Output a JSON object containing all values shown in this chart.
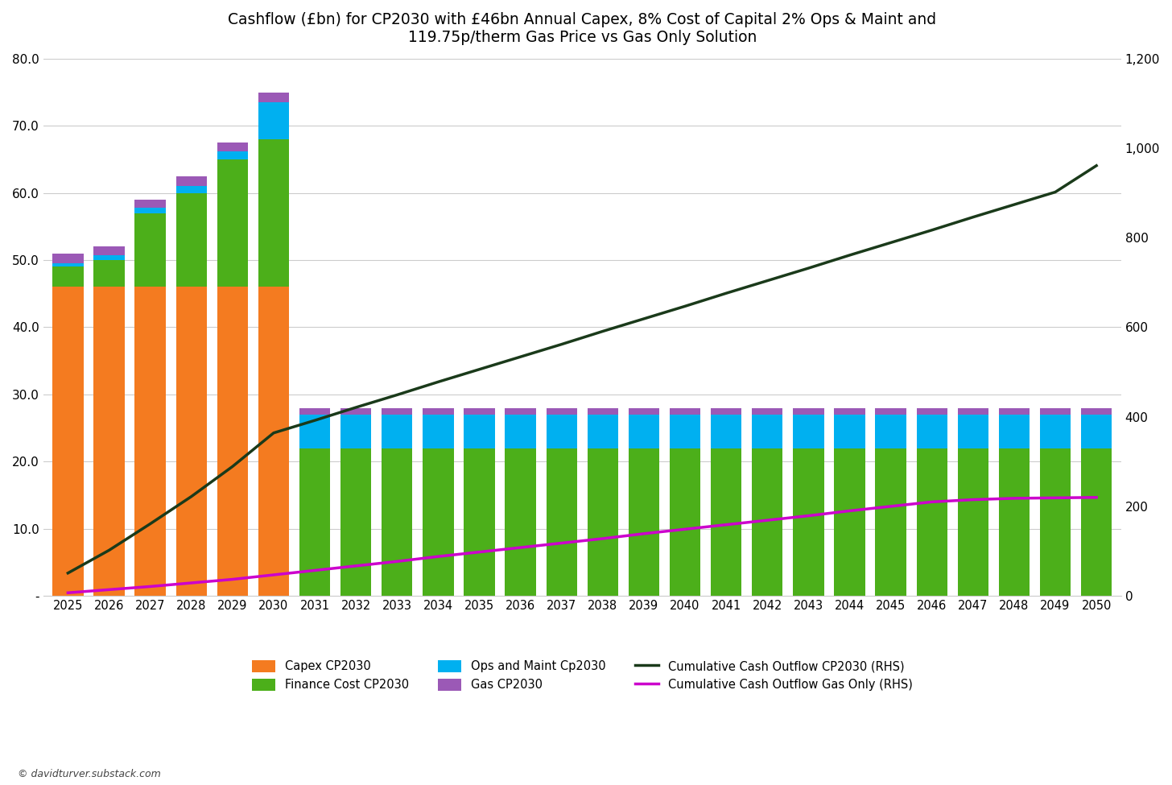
{
  "title": "Cashflow (£bn) for CP2030 with £46bn Annual Capex, 8% Cost of Capital 2% Ops & Maint and\n119.75p/therm Gas Price vs Gas Only Solution",
  "years": [
    2025,
    2026,
    2027,
    2028,
    2029,
    2030,
    2031,
    2032,
    2033,
    2034,
    2035,
    2036,
    2037,
    2038,
    2039,
    2040,
    2041,
    2042,
    2043,
    2044,
    2045,
    2046,
    2047,
    2048,
    2049,
    2050
  ],
  "capex": [
    46,
    46,
    46,
    46,
    46,
    46,
    0,
    0,
    0,
    0,
    0,
    0,
    0,
    0,
    0,
    0,
    0,
    0,
    0,
    0,
    0,
    0,
    0,
    0,
    0,
    0
  ],
  "finance_cost": [
    3,
    4,
    11,
    14,
    19,
    22,
    22,
    22,
    22,
    22,
    22,
    22,
    22,
    22,
    22,
    22,
    22,
    22,
    22,
    22,
    22,
    22,
    22,
    22,
    22,
    22
  ],
  "ops_maint": [
    0.5,
    0.7,
    0.8,
    1.0,
    1.2,
    5.5,
    5.0,
    5.0,
    5.0,
    5.0,
    5.0,
    5.0,
    5.0,
    5.0,
    5.0,
    5.0,
    5.0,
    5.0,
    5.0,
    5.0,
    5.0,
    5.0,
    5.0,
    5.0,
    5.0,
    5.0
  ],
  "gas": [
    1.5,
    1.3,
    1.2,
    1.5,
    1.3,
    1.5,
    1.0,
    1.0,
    1.0,
    1.0,
    1.0,
    1.0,
    1.0,
    1.0,
    1.0,
    1.0,
    1.0,
    1.0,
    1.0,
    1.0,
    1.0,
    1.0,
    1.0,
    1.0,
    1.0,
    1.0
  ],
  "cum_cp2030": [
    51,
    102,
    161,
    222,
    289,
    364,
    392,
    421,
    449,
    478,
    506,
    534,
    562,
    591,
    619,
    647,
    676,
    704,
    732,
    761,
    789,
    817,
    846,
    874,
    902,
    961
  ],
  "cum_gas_only": [
    7,
    14,
    21,
    29,
    37,
    47,
    57,
    67,
    77,
    88,
    98,
    108,
    118,
    128,
    139,
    149,
    159,
    169,
    179,
    190,
    200,
    210,
    215,
    218,
    219,
    220
  ],
  "color_capex": "#F47B20",
  "color_finance": "#4CAF1A",
  "color_ops": "#00B0F0",
  "color_gas": "#9B59B6",
  "color_cum_cp2030": "#1A3A1A",
  "color_cum_gas": "#CC00CC",
  "ylim_left": [
    0,
    80
  ],
  "ylim_right": [
    0,
    1200
  ],
  "yticks_left": [
    0,
    10,
    20,
    30,
    40,
    50,
    60,
    70,
    80
  ],
  "ytick_left_labels": [
    "-",
    "10.0",
    "20.0",
    "30.0",
    "40.0",
    "50.0",
    "60.0",
    "70.0",
    "80.0"
  ],
  "yticks_right": [
    0,
    200,
    400,
    600,
    800,
    1000,
    1200
  ],
  "ytick_right_labels": [
    "0",
    "200",
    "400",
    "600",
    "800",
    "1,000",
    "1,200"
  ],
  "background_color": "#FFFFFF",
  "legend_labels": [
    "Capex CP2030",
    "Finance Cost CP2030",
    "Ops and Maint Cp2030",
    "Gas CP2030",
    "Cumulative Cash Outflow CP2030 (RHS)",
    "Cumulative Cash Outflow Gas Only (RHS)"
  ],
  "watermark": "© davidturver.substack.com"
}
